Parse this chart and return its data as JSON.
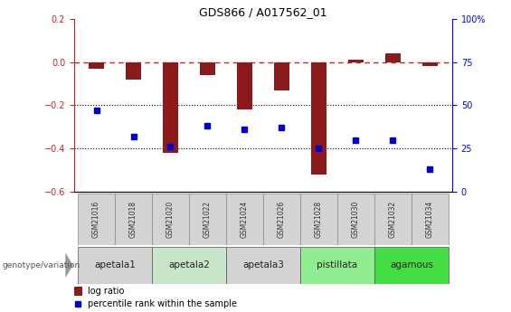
{
  "title": "GDS866 / A017562_01",
  "samples": [
    "GSM21016",
    "GSM21018",
    "GSM21020",
    "GSM21022",
    "GSM21024",
    "GSM21026",
    "GSM21028",
    "GSM21030",
    "GSM21032",
    "GSM21034"
  ],
  "log_ratio": [
    -0.03,
    -0.08,
    -0.42,
    -0.06,
    -0.22,
    -0.13,
    -0.52,
    0.01,
    0.04,
    -0.02
  ],
  "percentile_rank": [
    47,
    32,
    26,
    38,
    36,
    37,
    25,
    30,
    30,
    13
  ],
  "groups": [
    {
      "label": "apetala1",
      "samples": [
        0,
        1
      ],
      "color": "#d3d3d3"
    },
    {
      "label": "apetala2",
      "samples": [
        2,
        3
      ],
      "color": "#c8e6c9"
    },
    {
      "label": "apetala3",
      "samples": [
        4,
        5
      ],
      "color": "#d3d3d3"
    },
    {
      "label": "pistillata",
      "samples": [
        6,
        7
      ],
      "color": "#90ee90"
    },
    {
      "label": "agamous",
      "samples": [
        8,
        9
      ],
      "color": "#44dd44"
    }
  ],
  "ylim_left": [
    -0.6,
    0.2
  ],
  "ylim_right": [
    0,
    100
  ],
  "yticks_left": [
    -0.6,
    -0.4,
    -0.2,
    0.0,
    0.2
  ],
  "yticks_right": [
    0,
    25,
    50,
    75,
    100
  ],
  "bar_color": "#8b1a1a",
  "dot_color": "#0000cc",
  "hline_color": "#cc2222",
  "background_color": "#ffffff",
  "legend_bar_label": "log ratio",
  "legend_dot_label": "percentile rank within the sample",
  "genotype_label": "genotype/variation"
}
